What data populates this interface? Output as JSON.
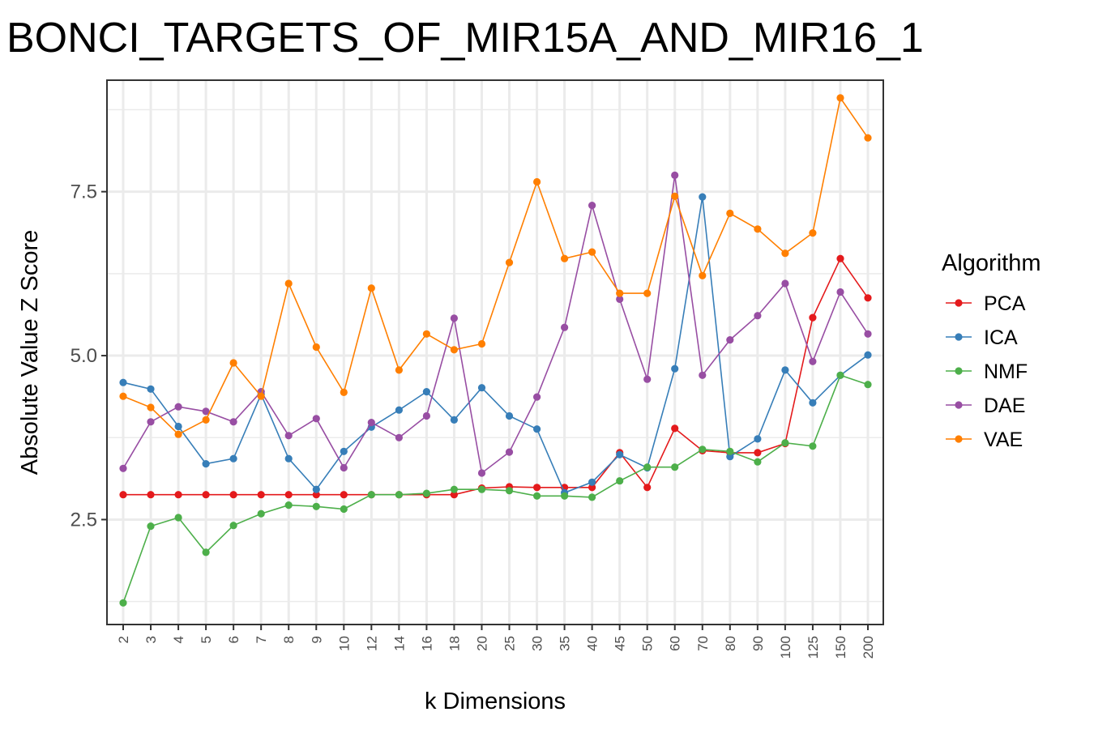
{
  "chart_data": {
    "type": "line",
    "title": "BONCI_TARGETS_OF_MIR15A_AND_MIR16_1",
    "xlabel": "k Dimensions",
    "ylabel": "Absolute Value Z Score",
    "categories": [
      "2",
      "3",
      "4",
      "5",
      "6",
      "7",
      "8",
      "9",
      "10",
      "12",
      "14",
      "16",
      "18",
      "20",
      "25",
      "30",
      "35",
      "40",
      "45",
      "50",
      "60",
      "70",
      "80",
      "90",
      "100",
      "125",
      "150",
      "200"
    ],
    "yticks": [
      2.5,
      5.0,
      7.5
    ],
    "ytick_labels": [
      "2.5",
      "5.0",
      "7.5"
    ],
    "ylim": [
      0.9,
      9.2
    ],
    "grid": true,
    "legend_title": "Algorithm",
    "legend_position": "right",
    "series": [
      {
        "name": "PCA",
        "color": "#E41A1C",
        "values": [
          2.88,
          2.88,
          2.88,
          2.88,
          2.88,
          2.88,
          2.88,
          2.88,
          2.88,
          2.88,
          2.88,
          2.88,
          2.88,
          2.98,
          3.0,
          2.99,
          2.99,
          2.99,
          3.52,
          2.99,
          3.89,
          3.55,
          3.52,
          3.52,
          3.66,
          5.58,
          6.48,
          5.88
        ]
      },
      {
        "name": "ICA",
        "color": "#377EB8",
        "values": [
          4.59,
          4.49,
          3.92,
          3.35,
          3.43,
          4.41,
          3.43,
          2.96,
          3.54,
          3.91,
          4.17,
          4.45,
          4.02,
          4.51,
          4.08,
          3.88,
          2.91,
          3.07,
          3.49,
          3.29,
          4.8,
          7.42,
          3.46,
          3.73,
          4.78,
          4.28,
          4.7,
          5.01
        ]
      },
      {
        "name": "NMF",
        "color": "#4DAF4A",
        "values": [
          1.23,
          2.4,
          2.53,
          2.0,
          2.41,
          2.59,
          2.72,
          2.7,
          2.66,
          2.88,
          2.88,
          2.9,
          2.96,
          2.96,
          2.94,
          2.86,
          2.86,
          2.84,
          3.09,
          3.3,
          3.3,
          3.57,
          3.54,
          3.38,
          3.67,
          3.62,
          4.7,
          4.56
        ]
      },
      {
        "name": "DAE",
        "color": "#984EA3",
        "values": [
          3.28,
          3.99,
          4.22,
          4.15,
          3.99,
          4.45,
          3.78,
          4.04,
          3.29,
          3.98,
          3.75,
          4.08,
          5.57,
          3.21,
          3.53,
          4.37,
          5.43,
          7.29,
          5.86,
          4.64,
          7.75,
          4.7,
          5.24,
          5.61,
          6.1,
          4.91,
          5.97,
          5.33
        ]
      },
      {
        "name": "VAE",
        "color": "#FF7F00",
        "values": [
          4.38,
          4.21,
          3.8,
          4.02,
          4.89,
          4.38,
          6.1,
          5.13,
          4.44,
          6.03,
          4.78,
          5.33,
          5.09,
          5.18,
          6.42,
          7.65,
          6.48,
          6.58,
          5.95,
          5.95,
          7.43,
          6.22,
          7.17,
          6.93,
          6.56,
          6.87,
          8.93,
          8.32
        ]
      }
    ]
  }
}
